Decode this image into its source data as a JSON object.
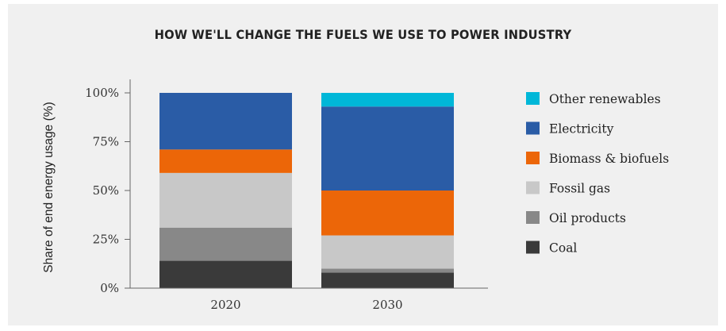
{
  "chart_data": {
    "type": "bar",
    "stacked": true,
    "title": "HOW WE'LL CHANGE THE FUELS WE USE TO POWER INDUSTRY",
    "xlabel": "",
    "ylabel": "Share of end energy usage (%)",
    "ylim": [
      0,
      100
    ],
    "yticks": [
      "0%",
      "25%",
      "50%",
      "75%",
      "100%"
    ],
    "ytick_values": [
      0,
      25,
      50,
      75,
      100
    ],
    "categories": [
      "2020",
      "2030"
    ],
    "legend_position": "right",
    "series": [
      {
        "name": "Coal",
        "color": "#3a3a3a",
        "values": [
          14,
          8
        ]
      },
      {
        "name": "Oil products",
        "color": "#888888",
        "values": [
          17,
          2
        ]
      },
      {
        "name": "Fossil gas",
        "color": "#c8c8c8",
        "values": [
          28,
          17
        ]
      },
      {
        "name": "Biomass & biofuels",
        "color": "#ec6608",
        "values": [
          12,
          23
        ]
      },
      {
        "name": "Electricity",
        "color": "#2a5ca6",
        "values": [
          29,
          43
        ]
      },
      {
        "name": "Other renewables",
        "color": "#00b7d8",
        "values": [
          0,
          7
        ]
      }
    ]
  }
}
